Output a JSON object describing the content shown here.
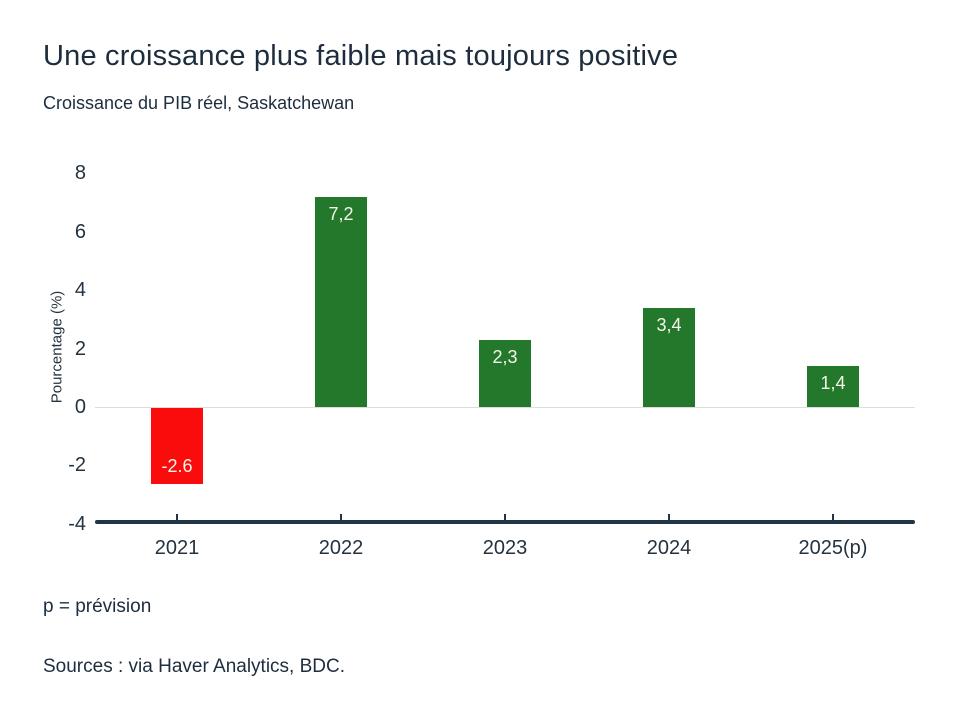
{
  "header": {
    "title": "Une croissance plus faible mais toujours positive",
    "subtitle": "Croissance du PIB réel, Saskatchewan"
  },
  "footer": {
    "note": "p = prévision",
    "sources": "Sources : via Haver Analytics, BDC."
  },
  "chart_data": {
    "type": "bar",
    "title": "Une croissance plus faible mais toujours positive",
    "subtitle": "Croissance du PIB réel, Saskatchewan",
    "categories": [
      "2021",
      "2022",
      "2023",
      "2024",
      "2025(p)"
    ],
    "values": [
      -2.6,
      7.2,
      2.3,
      3.4,
      1.4
    ],
    "value_labels": [
      "-2.6",
      "7,2",
      "2,3",
      "3,4",
      "1,4"
    ],
    "xlabel": "",
    "ylabel": "Pourcentage (%)",
    "ylim": [
      -4,
      8
    ],
    "yticks": [
      8,
      6,
      4,
      2,
      0,
      -2,
      -4
    ],
    "grid": "zero-line-only",
    "legend": "none",
    "colors": {
      "positive_bar": "#24782c",
      "negative_bar": "#fb0c0c",
      "axis": "#213548",
      "zero_line": "#dcdcd9",
      "bar_label_text": "#f7f4e9",
      "text": "#1d2d3e"
    }
  }
}
